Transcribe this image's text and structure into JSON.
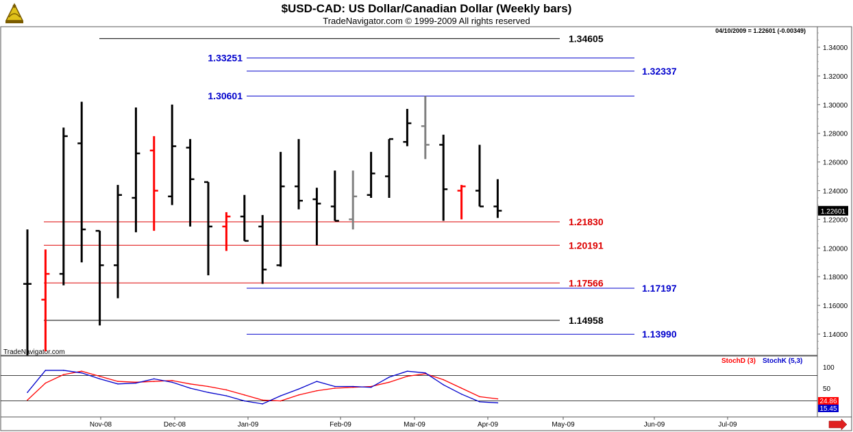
{
  "title": "$USD-CAD:  US Dollar/Canadian Dollar  (Weekly bars)",
  "subtitle": "TradeNavigator.com © 1999-2009 All rights reserved",
  "watermark": "TradeNavigator.com",
  "readout": "04/10/2009 = 1.22601 (-0.00349)",
  "colors": {
    "up": "#000000",
    "down": "#ff0000",
    "neutral": "#808080",
    "blue": "#0000cc",
    "red": "#dd0000",
    "stoch_d": "#ff0000",
    "stoch_k": "#0000cc"
  },
  "chart_data": [
    {
      "type": "ohlc",
      "title": "$USD-CAD:  US Dollar/Canadian Dollar  (Weekly bars)",
      "ylim": [
        1.124,
        1.355
      ],
      "y_ticks": [
        "1.14000",
        "1.16000",
        "1.18000",
        "1.20000",
        "1.22000",
        "1.24000",
        "1.26000",
        "1.28000",
        "1.30000",
        "1.32000",
        "1.34000"
      ],
      "y_tick_values": [
        1.14,
        1.16,
        1.18,
        1.2,
        1.22,
        1.24,
        1.26,
        1.28,
        1.3,
        1.32,
        1.34
      ],
      "x_labels": [
        "Nov-08",
        "Dec-08",
        "Jan-09",
        "Feb-09",
        "Mar-09",
        "Apr-09",
        "May-09",
        "Jun-09",
        "Jul-09"
      ],
      "last_value_label": "1.22601",
      "bars": [
        {
          "week": 1,
          "open": 1.175,
          "high": 1.213,
          "low": 1.125,
          "close": 1.175,
          "color": "black"
        },
        {
          "week": 2,
          "open": 1.164,
          "high": 1.199,
          "low": 1.128,
          "close": 1.182,
          "color": "red"
        },
        {
          "week": 3,
          "open": 1.182,
          "high": 1.284,
          "low": 1.174,
          "close": 1.278,
          "color": "black"
        },
        {
          "week": 4,
          "open": 1.273,
          "high": 1.302,
          "low": 1.19,
          "close": 1.213,
          "color": "black"
        },
        {
          "week": 5,
          "open": 1.212,
          "high": 1.212,
          "low": 1.146,
          "close": 1.188,
          "color": "black"
        },
        {
          "week": 6,
          "open": 1.188,
          "high": 1.244,
          "low": 1.165,
          "close": 1.237,
          "color": "black"
        },
        {
          "week": 7,
          "open": 1.235,
          "high": 1.298,
          "low": 1.211,
          "close": 1.266,
          "color": "black"
        },
        {
          "week": 8,
          "open": 1.268,
          "high": 1.278,
          "low": 1.212,
          "close": 1.24,
          "color": "red"
        },
        {
          "week": 9,
          "open": 1.236,
          "high": 1.3,
          "low": 1.23,
          "close": 1.271,
          "color": "black"
        },
        {
          "week": 10,
          "open": 1.27,
          "high": 1.276,
          "low": 1.215,
          "close": 1.248,
          "color": "black"
        },
        {
          "week": 11,
          "open": 1.246,
          "high": 1.246,
          "low": 1.181,
          "close": 1.215,
          "color": "black"
        },
        {
          "week": 12,
          "open": 1.215,
          "high": 1.225,
          "low": 1.198,
          "close": 1.222,
          "color": "red"
        },
        {
          "week": 13,
          "open": 1.222,
          "high": 1.237,
          "low": 1.205,
          "close": 1.205,
          "color": "black"
        },
        {
          "week": 14,
          "open": 1.215,
          "high": 1.223,
          "low": 1.175,
          "close": 1.185,
          "color": "black"
        },
        {
          "week": 15,
          "open": 1.188,
          "high": 1.267,
          "low": 1.187,
          "close": 1.243,
          "color": "black"
        },
        {
          "week": 16,
          "open": 1.243,
          "high": 1.276,
          "low": 1.227,
          "close": 1.233,
          "color": "black"
        },
        {
          "week": 17,
          "open": 1.234,
          "high": 1.242,
          "low": 1.202,
          "close": 1.231,
          "color": "black"
        },
        {
          "week": 18,
          "open": 1.229,
          "high": 1.254,
          "low": 1.219,
          "close": 1.219,
          "color": "black"
        },
        {
          "week": 19,
          "open": 1.22,
          "high": 1.254,
          "low": 1.213,
          "close": 1.236,
          "color": "gray"
        },
        {
          "week": 20,
          "open": 1.237,
          "high": 1.267,
          "low": 1.235,
          "close": 1.252,
          "color": "black"
        },
        {
          "week": 21,
          "open": 1.25,
          "high": 1.276,
          "low": 1.235,
          "close": 1.276,
          "color": "black"
        },
        {
          "week": 22,
          "open": 1.274,
          "high": 1.297,
          "low": 1.271,
          "close": 1.287,
          "color": "black"
        },
        {
          "week": 23,
          "open": 1.285,
          "high": 1.306,
          "low": 1.262,
          "close": 1.272,
          "color": "gray"
        },
        {
          "week": 24,
          "open": 1.272,
          "high": 1.279,
          "low": 1.219,
          "close": 1.241,
          "color": "black"
        },
        {
          "week": 25,
          "open": 1.24,
          "high": 1.244,
          "low": 1.22,
          "close": 1.243,
          "color": "red"
        },
        {
          "week": 26,
          "open": 1.24,
          "high": 1.272,
          "low": 1.229,
          "close": 1.229,
          "color": "black"
        },
        {
          "week": 27,
          "open": 1.229,
          "high": 1.248,
          "low": 1.221,
          "close": 1.226,
          "color": "black"
        }
      ],
      "levels": [
        {
          "label": "1.34605",
          "value": 1.34605,
          "color": "black",
          "side": "right"
        },
        {
          "label": "1.33251",
          "value": 1.33251,
          "color": "blue",
          "side": "left"
        },
        {
          "label": "1.32337",
          "value": 1.32337,
          "color": "blue",
          "side": "right"
        },
        {
          "label": "1.30601",
          "value": 1.30601,
          "color": "blue",
          "side": "left"
        },
        {
          "label": "1.21830",
          "value": 1.2183,
          "color": "red",
          "side": "right"
        },
        {
          "label": "1.20191",
          "value": 1.20191,
          "color": "red",
          "side": "right"
        },
        {
          "label": "1.17566",
          "value": 1.17566,
          "color": "red",
          "side": "right"
        },
        {
          "label": "1.17197",
          "value": 1.17197,
          "color": "blue",
          "side": "right"
        },
        {
          "label": "1.14958",
          "value": 1.14958,
          "color": "black",
          "side": "right"
        },
        {
          "label": "1.13990",
          "value": 1.1399,
          "color": "blue",
          "side": "right"
        }
      ]
    },
    {
      "type": "line",
      "legend": [
        {
          "name": "StochD (3)",
          "color": "red"
        },
        {
          "name": "StochK (5,3)",
          "color": "blue"
        }
      ],
      "ylim": [
        0,
        110
      ],
      "y_ticks": [
        "100",
        "50",
        "0"
      ],
      "y_tick_values": [
        100,
        50,
        0
      ],
      "reference_lines": [
        80,
        20
      ],
      "last_values": [
        "24.86",
        "15.45"
      ],
      "series": [
        {
          "name": "StochD (3)",
          "color": "red",
          "values": [
            22,
            62,
            82,
            90,
            78,
            66,
            64,
            66,
            68,
            60,
            54,
            46,
            34,
            22,
            20,
            34,
            44,
            50,
            52,
            54,
            64,
            78,
            84,
            70,
            50,
            30,
            24.86
          ]
        },
        {
          "name": "StochK (5,3)",
          "color": "blue",
          "values": [
            40,
            92,
            92,
            86,
            72,
            60,
            62,
            72,
            64,
            50,
            40,
            32,
            20,
            13,
            32,
            48,
            66,
            54,
            54,
            52,
            76,
            90,
            86,
            58,
            36,
            18,
            15.45
          ]
        }
      ]
    }
  ]
}
